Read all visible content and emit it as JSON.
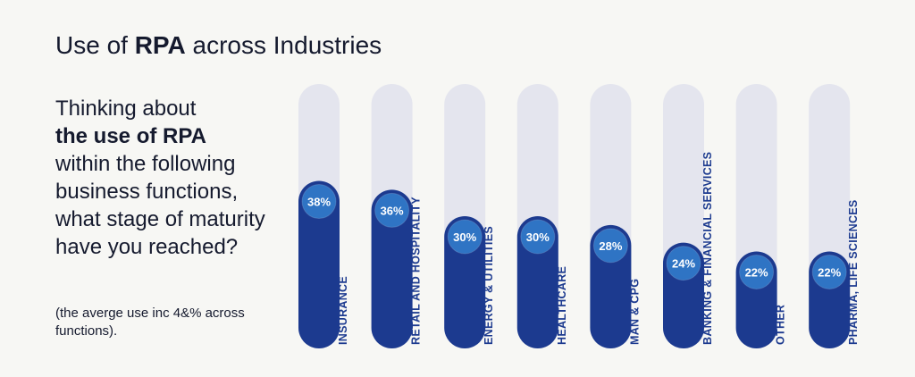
{
  "header": {
    "title_prefix": "Use of ",
    "title_bold": "RPA",
    "title_suffix": " across Industries"
  },
  "sidebar": {
    "question_line1": "Thinking about",
    "question_bold": "the use of RPA",
    "question_rest": "within the following business functions, what stage of maturity have you reached?",
    "note": "(the averge use inc 4&% across functions)."
  },
  "colors": {
    "track": "#e4e5ee",
    "bar": "#1c3a8f",
    "badge": "#2f74c4",
    "badge_text": "#ffffff",
    "category_text": "#1c3a8f"
  },
  "chart_data": {
    "type": "bar",
    "categories": [
      "INSURANCE",
      "RETAIL AND HOSPITALITY",
      "ENERGY & UTILITIES",
      "HEALTHCARE",
      "MAN & CPG",
      "BANKING & FINANCIAL SERVICES",
      "OTHER",
      "PHARMA, LIFE SCIENCES"
    ],
    "values": [
      38,
      36,
      30,
      30,
      28,
      24,
      22,
      22
    ],
    "value_labels": [
      "38%",
      "36%",
      "30%",
      "30%",
      "28%",
      "24%",
      "22%",
      "22%"
    ],
    "ylim": [
      0,
      60
    ],
    "grid": false,
    "legend": "none"
  }
}
